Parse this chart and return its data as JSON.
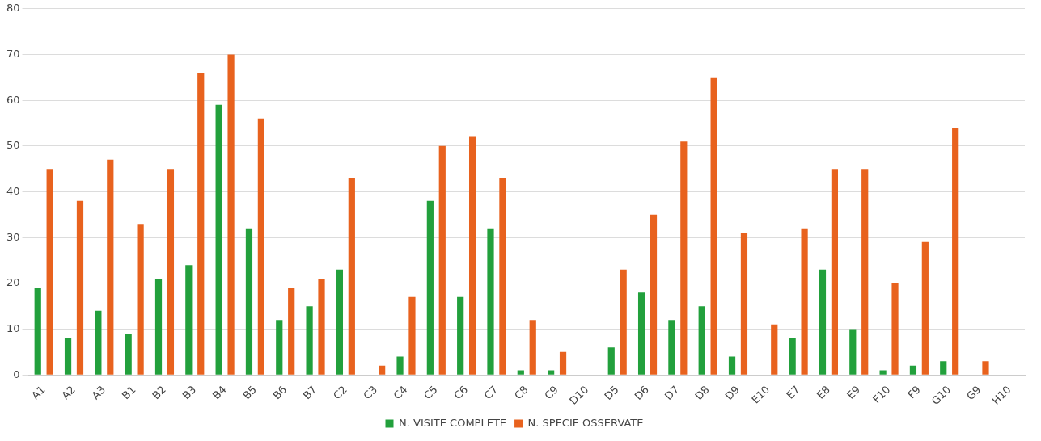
{
  "chart_data": {
    "type": "bar",
    "categories": [
      "A1",
      "A2",
      "A3",
      "B1",
      "B2",
      "B3",
      "B4",
      "B5",
      "B6",
      "B7",
      "C2",
      "C3",
      "C4",
      "C5",
      "C6",
      "C7",
      "C8",
      "C9",
      "D10",
      "D5",
      "D6",
      "D7",
      "D8",
      "D9",
      "E10",
      "E7",
      "E8",
      "E9",
      "F10",
      "F9",
      "G10",
      "G9",
      "H10"
    ],
    "series": [
      {
        "name": "N. VISITE COMPLETE",
        "color": "#22a03c",
        "values": [
          19,
          8,
          14,
          9,
          21,
          24,
          59,
          32,
          12,
          15,
          23,
          0,
          4,
          38,
          17,
          32,
          1,
          1,
          0,
          6,
          18,
          12,
          15,
          4,
          0,
          8,
          23,
          10,
          1,
          2,
          3,
          0,
          0
        ]
      },
      {
        "name": "N. SPECIE OSSERVATE",
        "color": "#e8621e",
        "values": [
          45,
          38,
          47,
          33,
          45,
          66,
          70,
          56,
          19,
          21,
          43,
          2,
          17,
          50,
          52,
          43,
          12,
          5,
          0,
          23,
          35,
          51,
          65,
          31,
          11,
          32,
          45,
          45,
          20,
          29,
          54,
          3,
          0
        ]
      }
    ],
    "ylim": [
      0,
      80
    ],
    "yticks": [
      0,
      10,
      20,
      30,
      40,
      50,
      60,
      70,
      80
    ],
    "grid": "y",
    "legend": "bottom"
  }
}
